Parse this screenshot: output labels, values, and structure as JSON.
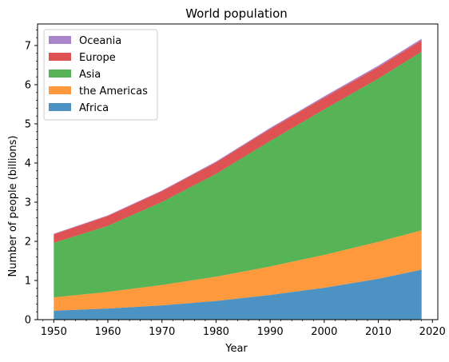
{
  "chart_data": {
    "type": "area",
    "title": "World population",
    "xlabel": "Year",
    "ylabel": "Number of people (billions)",
    "x": [
      1950,
      1960,
      1970,
      1980,
      1990,
      2000,
      2010,
      2018
    ],
    "xlim": [
      1947,
      2021
    ],
    "ylim": [
      0,
      7.55
    ],
    "xticks": [
      "1950",
      "1960",
      "1970",
      "1980",
      "1990",
      "2000",
      "2010",
      "2020"
    ],
    "yticks": [
      "0",
      "1",
      "2",
      "3",
      "4",
      "5",
      "6",
      "7"
    ],
    "stacked": true,
    "alpha": 0.8,
    "grid": false,
    "legend_position": "upper-left",
    "series": [
      {
        "name": "Africa",
        "color": "#1f77b4",
        "values": [
          0.228,
          0.284,
          0.365,
          0.477,
          0.631,
          0.814,
          1.044,
          1.275
        ]
      },
      {
        "name": "the Americas",
        "color": "#ff7f0e",
        "values": [
          0.34,
          0.425,
          0.519,
          0.619,
          0.727,
          0.84,
          0.943,
          1.006
        ]
      },
      {
        "name": "Asia",
        "color": "#2ca02c",
        "values": [
          1.394,
          1.686,
          2.12,
          2.625,
          3.202,
          3.714,
          4.169,
          4.56
        ]
      },
      {
        "name": "Europe",
        "color": "#d62728",
        "values": [
          0.22,
          0.253,
          0.276,
          0.295,
          0.31,
          0.303,
          0.294,
          0.293
        ]
      },
      {
        "name": "Oceania",
        "color": "#9467bd",
        "values": [
          0.012,
          0.015,
          0.019,
          0.022,
          0.026,
          0.031,
          0.036,
          0.039
        ]
      }
    ]
  }
}
